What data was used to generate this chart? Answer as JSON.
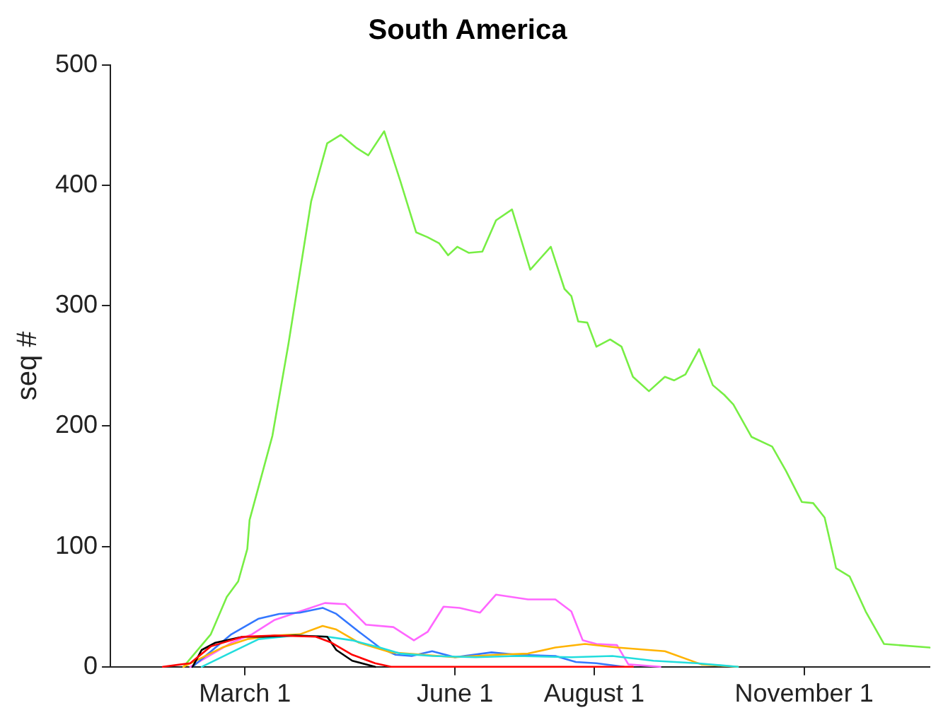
{
  "chart_data": {
    "type": "line",
    "title": "South America",
    "ylabel": "seq #",
    "xlim": [
      "--01-02",
      "--12-26"
    ],
    "ylim": [
      0,
      500
    ],
    "xticks": [
      {
        "value": "--03-01",
        "label": "March 1"
      },
      {
        "value": "--06-01",
        "label": "June 1"
      },
      {
        "value": "--08-01",
        "label": "August 1"
      },
      {
        "value": "--11-01",
        "label": "November 1"
      }
    ],
    "yticks": [
      0,
      100,
      200,
      300,
      400,
      500
    ],
    "grid": false,
    "legend": false,
    "marker": "none",
    "line_style": "solid",
    "series": [
      {
        "color": "#77ee44",
        "x": [
          "--02-03",
          "--02-15",
          "--02-22",
          "--02-27",
          "--03-02",
          "--03-03",
          "--03-13",
          "--03-20",
          "--03-30",
          "--04-06",
          "--04-12",
          "--04-19",
          "--04-24",
          "--05-01",
          "--05-08",
          "--05-15",
          "--05-20",
          "--05-25",
          "--05-29",
          "--06-02",
          "--06-07",
          "--06-13",
          "--06-19",
          "--06-26",
          "--07-04",
          "--07-13",
          "--07-19",
          "--07-22",
          "--07-25",
          "--07-29",
          "--08-02",
          "--08-08",
          "--08-13",
          "--08-18",
          "--08-25",
          "--09-01",
          "--09-05",
          "--09-10",
          "--09-16",
          "--09-22",
          "--09-27",
          "--10-01",
          "--10-09",
          "--10-18",
          "--10-24",
          "--10-31",
          "--11-05",
          "--11-10",
          "--11-14",
          "--11-15",
          "--11-21",
          "--11-28",
          "--12-06",
          "--12-26"
        ],
        "values": [
          0,
          27,
          58,
          71,
          98,
          122,
          192,
          268,
          387,
          435,
          442,
          431,
          425,
          445,
          404,
          361,
          357,
          352,
          342,
          349,
          344,
          345,
          371,
          380,
          330,
          349,
          314,
          308,
          287,
          286,
          266,
          272,
          266,
          241,
          229,
          241,
          238,
          243,
          264,
          234,
          226,
          218,
          191,
          183,
          163,
          137,
          136,
          124,
          91,
          82,
          75,
          46,
          19,
          16
        ]
      },
      {
        "color": "#ff66ff",
        "x": [
          "--02-06",
          "--02-24",
          "--03-04",
          "--03-14",
          "--03-25",
          "--04-05",
          "--04-14",
          "--04-23",
          "--05-05",
          "--05-14",
          "--05-20",
          "--05-27",
          "--06-03",
          "--06-12",
          "--06-19",
          "--07-03",
          "--07-15",
          "--07-22",
          "--07-27",
          "--08-02",
          "--08-11",
          "--08-16",
          "--08-30"
        ],
        "values": [
          0,
          20,
          27,
          39,
          46,
          53,
          52,
          35,
          33,
          22,
          29,
          50,
          49,
          45,
          60,
          56,
          56,
          46,
          22,
          19,
          18,
          2,
          0
        ]
      },
      {
        "color": "#3377ff",
        "x": [
          "--02-07",
          "--02-24",
          "--03-07",
          "--03-16",
          "--03-25",
          "--04-04",
          "--04-10",
          "--04-20",
          "--04-29",
          "--05-06",
          "--05-13",
          "--05-22",
          "--06-01",
          "--06-17",
          "--06-28",
          "--07-15",
          "--07-24",
          "--08-02",
          "--08-14"
        ],
        "values": [
          0,
          27,
          40,
          44,
          45,
          49,
          44,
          29,
          16,
          10,
          9,
          13,
          8,
          12,
          10,
          9,
          4,
          3,
          0
        ]
      },
      {
        "color": "#ffb300",
        "x": [
          "--02-03",
          "--02-20",
          "--03-02",
          "--03-14",
          "--03-25",
          "--04-04",
          "--04-10",
          "--04-20",
          "--05-04",
          "--05-18",
          "--06-01",
          "--06-19",
          "--07-03",
          "--07-15",
          "--07-28",
          "--08-11",
          "--09-01",
          "--09-17",
          "--10-03"
        ],
        "values": [
          0,
          16,
          23,
          26,
          27,
          34,
          31,
          20,
          12,
          10,
          8,
          10,
          11,
          16,
          19,
          16,
          13,
          2,
          0
        ]
      },
      {
        "color": "#22dddd",
        "x": [
          "--02-11",
          "--02-24",
          "--03-07",
          "--03-23",
          "--04-06",
          "--04-17",
          "--04-29",
          "--05-08",
          "--05-22",
          "--06-10",
          "--06-28",
          "--07-22",
          "--08-09",
          "--08-27",
          "--09-15",
          "--10-03"
        ],
        "values": [
          0,
          12,
          23,
          26,
          25,
          22,
          16,
          11,
          9,
          8,
          9,
          8,
          9,
          5,
          3,
          0
        ]
      },
      {
        "color": "#000000",
        "x": [
          "--02-07",
          "--02-11",
          "--02-17",
          "--02-29",
          "--03-09",
          "--03-23",
          "--04-06",
          "--04-10",
          "--04-17",
          "--04-27"
        ],
        "values": [
          0,
          14,
          20,
          25,
          25,
          26,
          25,
          14,
          5,
          0
        ]
      },
      {
        "color": "#ff0000",
        "x": [
          "--01-25",
          "--02-06",
          "--02-15",
          "--02-29",
          "--03-14",
          "--04-01",
          "--04-08",
          "--04-17",
          "--04-27",
          "--05-04",
          "--08-18"
        ],
        "values": [
          0,
          3,
          17,
          25,
          26,
          25,
          20,
          10,
          3,
          0,
          0
        ]
      }
    ]
  }
}
